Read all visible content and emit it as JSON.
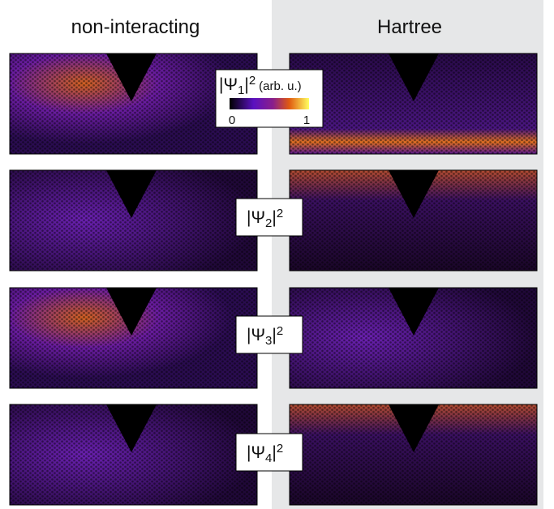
{
  "columns": [
    "non-interacting",
    "Hartree"
  ],
  "colorbar": {
    "label": {
      "pre": "|Ψ",
      "sub": "1",
      "mid": "|",
      "sup": "2",
      "unit": "(arb. u.)"
    },
    "min": 0,
    "max": 1
  },
  "state_labels": [
    {
      "pre": "|Ψ",
      "sub": "2",
      "mid": "|",
      "sup": "2"
    },
    {
      "pre": "|Ψ",
      "sub": "3",
      "mid": "|",
      "sup": "2"
    },
    {
      "pre": "|Ψ",
      "sub": "4",
      "mid": "|",
      "sup": "2"
    }
  ]
}
